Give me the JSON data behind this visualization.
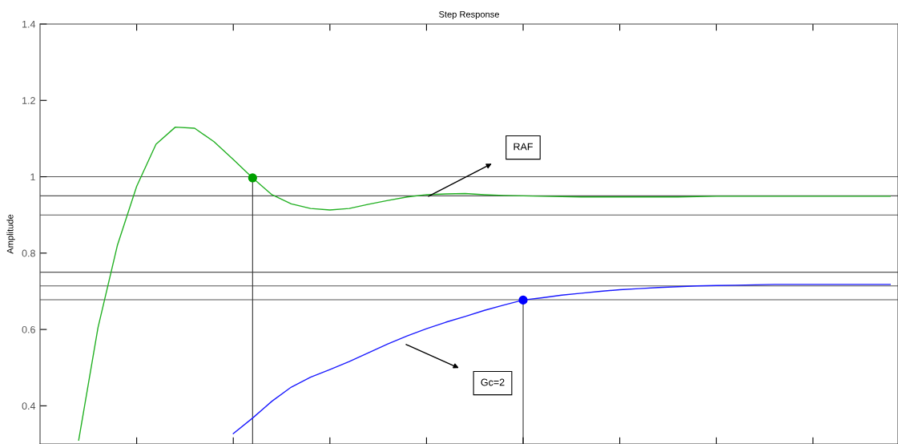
{
  "chart_data": {
    "type": "line",
    "title": "Step Response",
    "ylabel": "Amplitude",
    "categories": [
      null,
      null,
      null,
      null,
      null,
      null,
      null,
      null,
      null,
      null,
      null,
      null,
      null,
      null,
      null,
      null,
      null,
      null,
      null,
      null,
      null,
      null,
      null,
      null,
      null,
      null,
      null,
      null,
      null,
      null,
      null,
      null,
      null,
      null,
      null,
      null,
      null,
      null,
      null,
      null,
      null,
      null,
      null,
      null,
      null
    ],
    "ylim": [
      0.3,
      1.4
    ],
    "yticks": [
      {
        "value": 0.4,
        "label": "0.4"
      },
      {
        "value": 0.6,
        "label": "0.6"
      },
      {
        "value": 0.8,
        "label": "0.8"
      },
      {
        "value": 1,
        "label": "1"
      },
      {
        "value": 1.2,
        "label": "1.2"
      },
      {
        "value": 1.4,
        "label": "1.4"
      }
    ],
    "tick_labels": "y",
    "grid": false,
    "line_style": "solid",
    "series": [
      {
        "color": "#22b022",
        "values": [
          null,
          null,
          0.31,
          0.605,
          0.82,
          0.975,
          1.085,
          1.13,
          1.127,
          1.092,
          1.045,
          0.997,
          0.953,
          0.929,
          0.917,
          0.913,
          0.917,
          0.928,
          0.938,
          0.947,
          0.953,
          0.955,
          0.956,
          0.953,
          0.951,
          0.95,
          0.949,
          0.948,
          0.947,
          0.947,
          0.947,
          0.947,
          0.947,
          0.947,
          0.948,
          0.949,
          0.949,
          0.949,
          0.949,
          0.949,
          0.949,
          0.949,
          0.949,
          0.949,
          0.949
        ]
      },
      {
        "color": "#1a1aff",
        "values": [
          null,
          null,
          null,
          null,
          null,
          null,
          null,
          null,
          null,
          null,
          0.327,
          0.368,
          0.412,
          0.449,
          0.475,
          0.495,
          0.516,
          0.539,
          0.562,
          0.583,
          0.602,
          0.619,
          0.634,
          0.65,
          0.664,
          0.677,
          0.683,
          0.69,
          0.695,
          0.7,
          0.704,
          0.707,
          0.71,
          0.712,
          0.714,
          0.715,
          0.716,
          0.717,
          0.718,
          0.718,
          0.718,
          0.718,
          0.718,
          0.718,
          0.718
        ]
      },
      {
        "type": "lollipop",
        "marker": "circle",
        "color": "#00a000",
        "values": [
          null,
          null,
          null,
          null,
          null,
          null,
          null,
          null,
          null,
          null,
          null,
          0.997,
          null,
          null,
          null,
          null,
          null,
          null,
          null,
          null,
          null,
          null,
          null,
          null,
          null,
          null,
          null,
          null,
          null,
          null,
          null,
          null,
          null,
          null,
          null,
          null,
          null,
          null,
          null,
          null,
          null,
          null,
          null,
          null,
          null
        ]
      },
      {
        "type": "lollipop",
        "marker": "circle",
        "color": "#0000ff",
        "values": [
          null,
          null,
          null,
          null,
          null,
          null,
          null,
          null,
          null,
          null,
          null,
          null,
          null,
          null,
          null,
          null,
          null,
          null,
          null,
          null,
          null,
          null,
          null,
          null,
          null,
          0.677,
          null,
          null,
          null,
          null,
          null,
          null,
          null,
          null,
          null,
          null,
          null,
          null,
          null,
          null,
          null,
          null,
          null,
          null,
          null
        ]
      }
    ],
    "ref_lines": [
      {
        "axis": "y",
        "value": 1.0,
        "color": "#555555"
      },
      {
        "axis": "y",
        "value": 0.95,
        "color": "#555555"
      },
      {
        "axis": "y",
        "value": 0.9,
        "color": "#555555"
      },
      {
        "axis": "y",
        "value": 0.75,
        "color": "#555555"
      },
      {
        "axis": "y",
        "value": 0.714,
        "color": "#555555"
      },
      {
        "axis": "y",
        "value": 0.678,
        "color": "#555555"
      }
    ],
    "annotations": [
      "RAF",
      "Gc=2"
    ]
  }
}
